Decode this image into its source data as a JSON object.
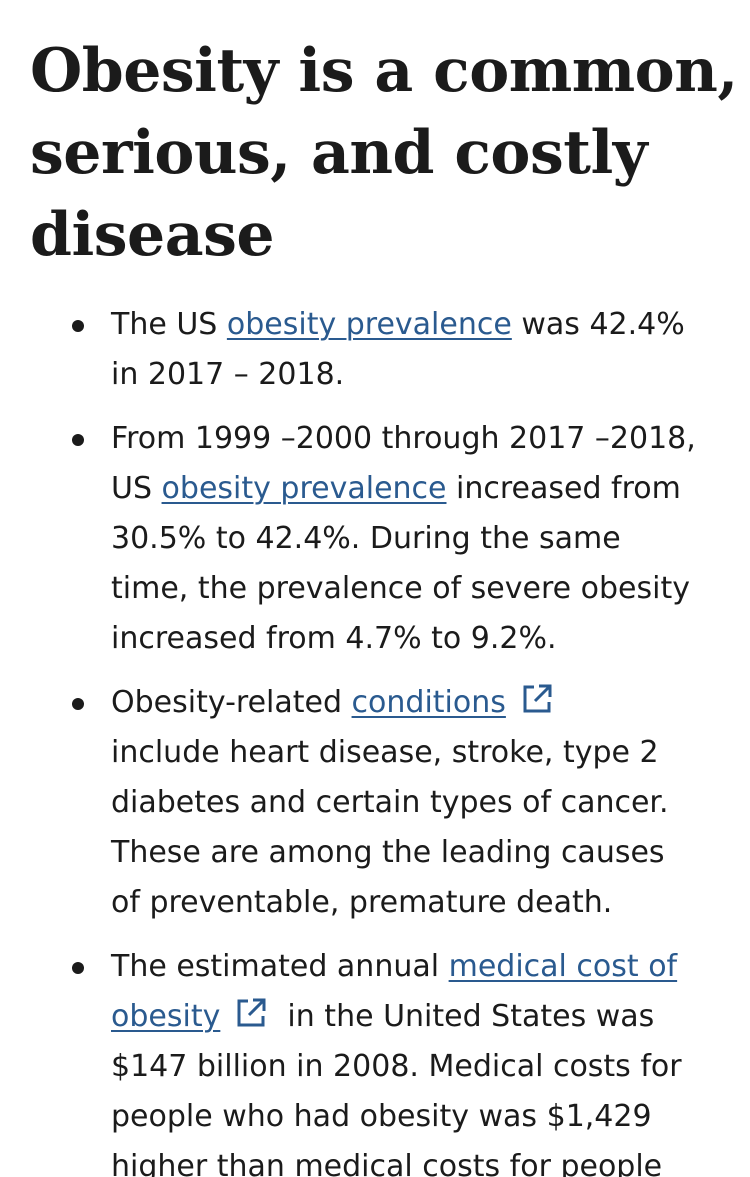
{
  "heading": {
    "line1": "Obesity is a common,",
    "line2": "serious, and costly",
    "line3": "disease"
  },
  "facts": [
    {
      "r1_a": "The US ",
      "r1_link": "obesity prevalence",
      "r1_b": " was 42.4%",
      "r2": "in 2017 – 2018."
    },
    {
      "r1": "From 1999 –2000 through 2017 –2018,",
      "r2_a": "US ",
      "r2_link": "obesity prevalence",
      "r2_b": " increased from",
      "r3": "30.5% to 42.4%. During the same",
      "r4": "time, the prevalence of severe obesity",
      "r5": "increased from 4.7% to 9.2%."
    },
    {
      "r1_a": "Obesity-related ",
      "r1_link": "conditions",
      "r1_icon": "external-link-icon",
      "r2": "include heart disease, stroke, type 2",
      "r3": "diabetes and certain types of cancer.",
      "r4": "These are among the leading causes",
      "r5": "of preventable, premature death."
    },
    {
      "r1_a": "The estimated annual ",
      "r1_link": "medical cost of",
      "r2_link": "obesity",
      "r2_icon": "external-link-icon",
      "r2_b": "  in the United States was",
      "r3": "$147 billion in 2008. Medical costs for",
      "r4": "people who had obesity was $1,429",
      "r5": "higher than medical costs for people"
    }
  ],
  "colors": {
    "text": "#1b1b1b",
    "link": "#2a5a8f",
    "background": "#ffffff"
  }
}
